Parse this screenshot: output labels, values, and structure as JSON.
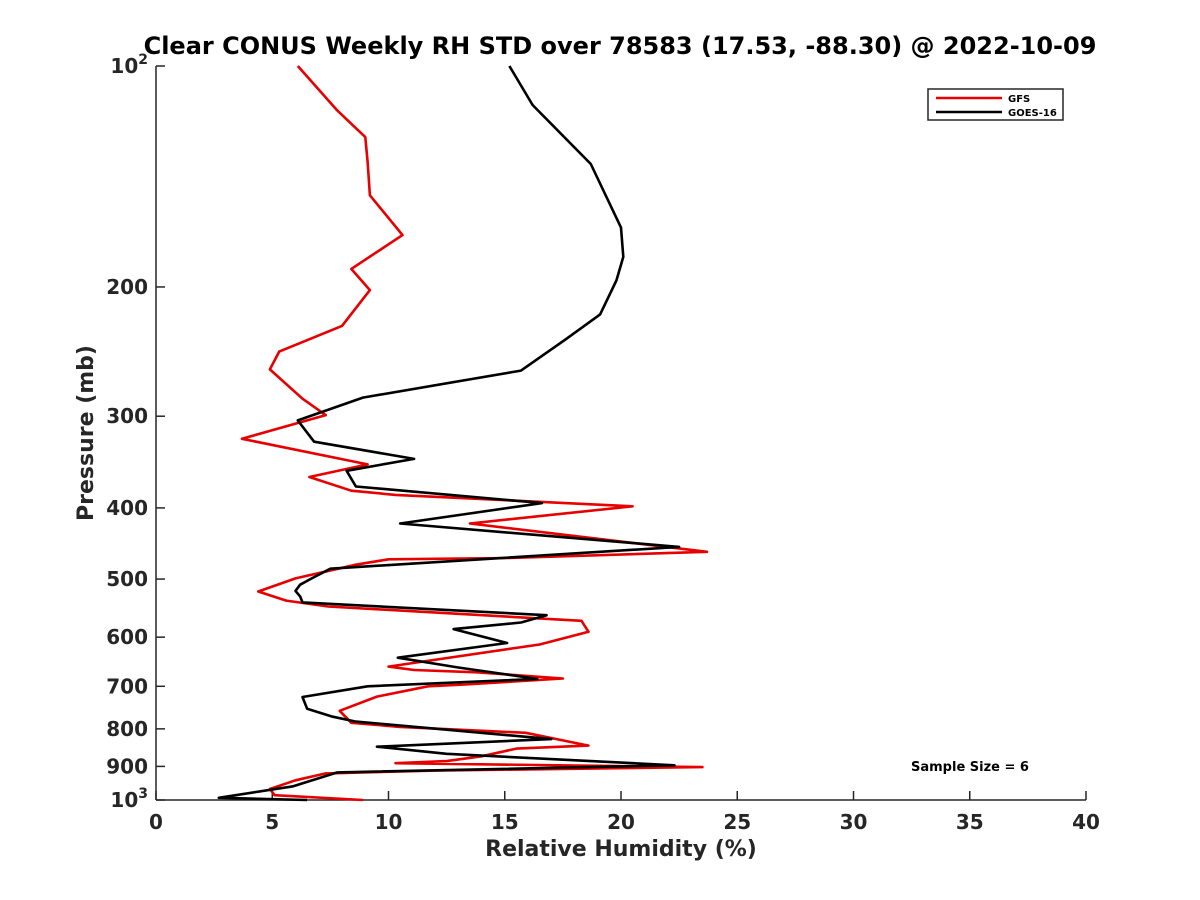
{
  "chart_data": {
    "type": "line",
    "title": "Clear CONUS Weekly RH STD over 78583 (17.53, -88.30) @ 2022-10-09",
    "xlabel": "Relative Humidity (%)",
    "ylabel": "Pressure (mb)",
    "xlim": [
      0,
      40
    ],
    "ylim": [
      100,
      1000
    ],
    "y_scale": "log",
    "y_reversed": true,
    "x_ticks": [
      "0",
      "5",
      "10",
      "15",
      "20",
      "25",
      "30",
      "35",
      "40"
    ],
    "y_ticks": [
      {
        "value": 100,
        "label": "10",
        "sup": "2"
      },
      {
        "value": 200,
        "label": "200"
      },
      {
        "value": 300,
        "label": "300"
      },
      {
        "value": 400,
        "label": "400"
      },
      {
        "value": 500,
        "label": "500"
      },
      {
        "value": 600,
        "label": "600"
      },
      {
        "value": 700,
        "label": "700"
      },
      {
        "value": 800,
        "label": "800"
      },
      {
        "value": 900,
        "label": "900"
      },
      {
        "value": 1000,
        "label": "10",
        "sup": "3"
      }
    ],
    "legend_position": "top-right",
    "grid": false,
    "annotation": "Sample Size = 6",
    "series": [
      {
        "name": "GFS",
        "color": "#e60000",
        "points": [
          [
            6.1,
            100
          ],
          [
            7.8,
            115
          ],
          [
            9.0,
            125
          ],
          [
            9.1,
            135
          ],
          [
            9.2,
            150
          ],
          [
            10.6,
            170
          ],
          [
            8.4,
            189
          ],
          [
            9.2,
            202
          ],
          [
            8.0,
            226
          ],
          [
            5.3,
            245
          ],
          [
            4.9,
            259
          ],
          [
            6.3,
            284
          ],
          [
            7.3,
            299
          ],
          [
            3.7,
            322
          ],
          [
            9.1,
            349
          ],
          [
            6.6,
            363
          ],
          [
            8.4,
            379
          ],
          [
            10.3,
            384
          ],
          [
            20.5,
            398
          ],
          [
            13.5,
            420
          ],
          [
            23.7,
            459
          ],
          [
            15.2,
            468
          ],
          [
            10.0,
            470
          ],
          [
            8.6,
            478
          ],
          [
            6.0,
            499
          ],
          [
            4.4,
            520
          ],
          [
            5.6,
            535
          ],
          [
            7.4,
            545
          ],
          [
            18.3,
            570
          ],
          [
            18.6,
            590
          ],
          [
            16.5,
            614
          ],
          [
            10.0,
            658
          ],
          [
            11.1,
            665
          ],
          [
            13.8,
            670
          ],
          [
            17.5,
            683
          ],
          [
            13.3,
            696
          ],
          [
            11.7,
            700
          ],
          [
            9.5,
            723
          ],
          [
            7.9,
            756
          ],
          [
            8.4,
            785
          ],
          [
            10.5,
            795
          ],
          [
            15.9,
            810
          ],
          [
            18.6,
            843
          ],
          [
            15.5,
            851
          ],
          [
            14.0,
            872
          ],
          [
            12.5,
            885
          ],
          [
            10.3,
            891
          ],
          [
            23.5,
            902
          ],
          [
            12.0,
            912
          ],
          [
            7.3,
            920
          ],
          [
            6.0,
            940
          ],
          [
            4.9,
            966
          ],
          [
            5.1,
            985
          ],
          [
            8.9,
            1000
          ]
        ]
      },
      {
        "name": "GOES-16",
        "color": "#000000",
        "points": [
          [
            15.2,
            100
          ],
          [
            16.2,
            113
          ],
          [
            18.7,
            136
          ],
          [
            20.0,
            166
          ],
          [
            20.1,
            182
          ],
          [
            19.8,
            196
          ],
          [
            19.1,
            218
          ],
          [
            17.6,
            236
          ],
          [
            15.7,
            260
          ],
          [
            8.9,
            283
          ],
          [
            6.1,
            304
          ],
          [
            6.8,
            325
          ],
          [
            11.1,
            343
          ],
          [
            8.2,
            356
          ],
          [
            8.6,
            374
          ],
          [
            16.6,
            394
          ],
          [
            10.5,
            420
          ],
          [
            22.5,
            452
          ],
          [
            7.5,
            484
          ],
          [
            6.8,
            497
          ],
          [
            6.2,
            509
          ],
          [
            6.0,
            519
          ],
          [
            6.2,
            528
          ],
          [
            6.3,
            538
          ],
          [
            16.8,
            560
          ],
          [
            15.7,
            573
          ],
          [
            12.8,
            585
          ],
          [
            15.1,
            611
          ],
          [
            10.4,
            640
          ],
          [
            13.0,
            660
          ],
          [
            16.4,
            684
          ],
          [
            9.1,
            700
          ],
          [
            6.3,
            724
          ],
          [
            6.5,
            751
          ],
          [
            7.6,
            770
          ],
          [
            8.6,
            782
          ],
          [
            17.0,
            826
          ],
          [
            9.5,
            846
          ],
          [
            12.5,
            865
          ],
          [
            22.3,
            897
          ],
          [
            7.8,
            917
          ],
          [
            5.9,
            958
          ],
          [
            2.7,
            993
          ],
          [
            6.5,
            1000
          ]
        ]
      }
    ]
  }
}
